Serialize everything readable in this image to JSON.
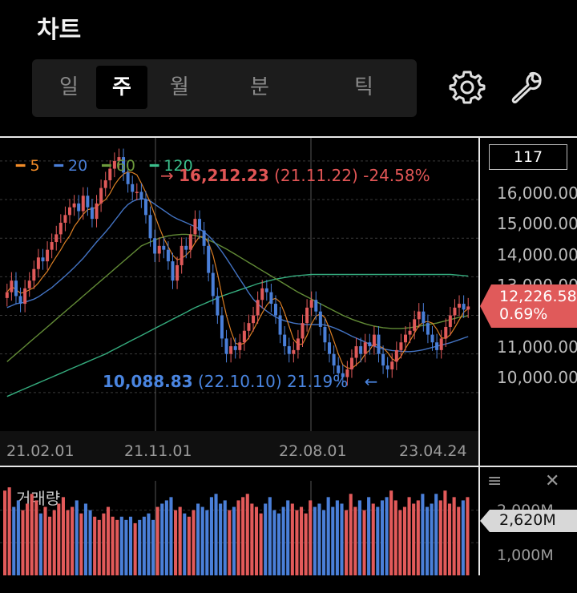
{
  "header": {
    "title": "차트"
  },
  "tabs": [
    {
      "label": "일",
      "active": false
    },
    {
      "label": "주",
      "active": true
    },
    {
      "label": "월",
      "active": false
    },
    {
      "label": "분",
      "active": false
    },
    {
      "label": "틱",
      "active": false
    }
  ],
  "toolbar": {
    "settings_icon": "gear-icon",
    "tools_icon": "wrench-icon"
  },
  "chart_data": [
    {
      "type": "candlestick",
      "interval": "weekly",
      "x_ticks": [
        "21.02.01",
        "21.11.01",
        "22.08.01",
        "23.04.24"
      ],
      "y_ticks": [
        "16,000.00",
        "15,000.00",
        "14,000.00",
        "13,000.00",
        "11,000.00",
        "10,000.00"
      ],
      "ylim": [
        9000,
        16600
      ],
      "legend": [
        {
          "label": "5",
          "color": "#f28c28"
        },
        {
          "label": "20",
          "color": "#4a7fd8"
        },
        {
          "label": "60",
          "color": "#6d9a3c"
        },
        {
          "label": "120",
          "color": "#3bbf8c"
        }
      ],
      "visible_candle_count": "117",
      "current_price": "12,226.58",
      "current_change": "0.69%",
      "high_annotation": {
        "arrow": "→",
        "value": "16,212.23",
        "date": "(21.11.22)",
        "change": "-24.58%"
      },
      "low_annotation": {
        "value": "10,088.83",
        "date": "(22.10.10)",
        "change": "21.19%",
        "arrow": "←"
      },
      "close_series": [
        12600,
        12900,
        12500,
        12300,
        12700,
        12900,
        13200,
        13500,
        13400,
        13700,
        13900,
        14100,
        14400,
        14600,
        14800,
        14900,
        14700,
        15100,
        14800,
        14500,
        14900,
        15300,
        15500,
        15800,
        16000,
        16100,
        15700,
        15400,
        15200,
        15200,
        15000,
        14600,
        14000,
        13600,
        13800,
        13700,
        13400,
        12900,
        13300,
        13800,
        13700,
        14100,
        14500,
        14200,
        13800,
        13100,
        12500,
        12000,
        11400,
        11000,
        11200,
        11100,
        11300,
        11600,
        11800,
        12000,
        12400,
        12700,
        12600,
        12300,
        12000,
        11500,
        11200,
        11000,
        11100,
        11400,
        11800,
        12200,
        12400,
        12100,
        11700,
        11300,
        11000,
        10700,
        10500,
        10400,
        10600,
        10900,
        11200,
        11000,
        11300,
        11200,
        11500,
        11000,
        10700,
        10600,
        10800,
        11100,
        11300,
        11500,
        11600,
        11900,
        12100,
        11800,
        11500,
        11300,
        11100,
        11400,
        11700,
        12000,
        12200,
        12300,
        12150,
        12230
      ],
      "ma": {
        "5": [
          12600,
          12750,
          12666,
          12575,
          12600,
          12660,
          12720,
          12840,
          13000,
          13140,
          13340,
          13520,
          13700,
          13900,
          14060,
          14300,
          14460,
          14620,
          14740,
          14760,
          14800,
          14920,
          15000,
          15160,
          15380,
          15540,
          15660,
          15720,
          15700,
          15640,
          15420,
          15180,
          14920,
          14600,
          14280,
          14000,
          13780,
          13560,
          13440,
          13480,
          13560,
          13680,
          13880,
          14040,
          14040,
          13880,
          13560,
          13080,
          12520,
          12000,
          11600,
          11280,
          11240,
          11280,
          11420,
          11620,
          11840,
          12060,
          12260,
          12400,
          12440,
          12340,
          12060,
          11720,
          11380,
          11240,
          11260,
          11480,
          11780,
          11980,
          12040,
          11940,
          11660,
          11340,
          11000,
          10720,
          10640,
          10620,
          10720,
          10820,
          11000,
          11100,
          11280,
          11200,
          11160,
          11040,
          10880,
          10800,
          10940,
          11140,
          11340,
          11540,
          11740,
          11820,
          11840,
          11800,
          11640,
          11420,
          11400,
          11500,
          11680,
          11880,
          12080,
          12176
        ],
        "20": [
          12200,
          12250,
          12300,
          12320,
          12340,
          12380,
          12420,
          12480,
          12560,
          12640,
          12720,
          12820,
          12920,
          13020,
          13130,
          13240,
          13360,
          13480,
          13620,
          13760,
          13900,
          14030,
          14160,
          14300,
          14450,
          14600,
          14750,
          14870,
          14950,
          15000,
          15020,
          15010,
          14960,
          14880,
          14800,
          14720,
          14640,
          14560,
          14500,
          14450,
          14400,
          14350,
          14300,
          14240,
          14160,
          14060,
          13940,
          13800,
          13650,
          13480,
          13300,
          13120,
          12940,
          12760,
          12580,
          12420,
          12300,
          12200,
          12110,
          12030,
          11960,
          11900,
          11860,
          11830,
          11800,
          11780,
          11770,
          11760,
          11760,
          11760,
          11760,
          11750,
          11720,
          11680,
          11630,
          11580,
          11520,
          11460,
          11410,
          11360,
          11310,
          11250,
          11200,
          11160,
          11130,
          11110,
          11090,
          11080,
          11070,
          11060,
          11060,
          11070,
          11090,
          11110,
          11140,
          11170,
          11200,
          11230,
          11260,
          11290,
          11330,
          11370,
          11410,
          11450
        ],
        "60": [
          10800,
          10900,
          11000,
          11100,
          11200,
          11300,
          11400,
          11500,
          11600,
          11700,
          11800,
          11900,
          12000,
          12100,
          12200,
          12300,
          12400,
          12500,
          12600,
          12700,
          12800,
          12900,
          13000,
          13100,
          13200,
          13300,
          13400,
          13500,
          13600,
          13700,
          13800,
          13850,
          13900,
          13950,
          14000,
          14030,
          14060,
          14080,
          14090,
          14100,
          14100,
          14090,
          14070,
          14040,
          14000,
          13950,
          13900,
          13840,
          13780,
          13720,
          13650,
          13580,
          13510,
          13440,
          13370,
          13300,
          13230,
          13160,
          13090,
          13020,
          12950,
          12880,
          12810,
          12740,
          12670,
          12600,
          12540,
          12480,
          12420,
          12360,
          12300,
          12240,
          12180,
          12120,
          12060,
          12000,
          11950,
          11900,
          11860,
          11820,
          11780,
          11750,
          11720,
          11700,
          11680,
          11670,
          11660,
          11660,
          11660,
          11670,
          11680,
          11700,
          11720,
          11740,
          11760,
          11780,
          11800,
          11830,
          11860,
          11890,
          11920,
          11950,
          11970,
          11990
        ],
        "120": [
          9900,
          9950,
          10000,
          10050,
          10100,
          10150,
          10200,
          10250,
          10300,
          10350,
          10400,
          10450,
          10500,
          10550,
          10600,
          10650,
          10700,
          10750,
          10800,
          10850,
          10900,
          10950,
          11000,
          11060,
          11120,
          11180,
          11240,
          11300,
          11360,
          11420,
          11480,
          11540,
          11600,
          11660,
          11720,
          11780,
          11840,
          11900,
          11960,
          12020,
          12080,
          12140,
          12200,
          12250,
          12300,
          12350,
          12400,
          12450,
          12500,
          12540,
          12580,
          12620,
          12660,
          12700,
          12740,
          12780,
          12820,
          12850,
          12880,
          12910,
          12940,
          12960,
          12980,
          13000,
          13020,
          13030,
          13040,
          13050,
          13060,
          13060,
          13060,
          13060,
          13060,
          13060,
          13060,
          13060,
          13060,
          13060,
          13060,
          13060,
          13060,
          13060,
          13060,
          13060,
          13060,
          13060,
          13060,
          13060,
          13060,
          13060,
          13060,
          13060,
          13060,
          13060,
          13060,
          13060,
          13060,
          13060,
          13060,
          13060,
          13050,
          13040,
          13030,
          13020
        ]
      }
    },
    {
      "type": "bar",
      "title": "거래량",
      "y_ticks": [
        "2,000M",
        "1,000M"
      ],
      "current_volume": "2,620M",
      "values": [
        2600,
        2700,
        2100,
        2300,
        2000,
        2200,
        2500,
        2300,
        1900,
        2100,
        1800,
        2000,
        2200,
        2400,
        2000,
        2100,
        2300,
        1900,
        2200,
        2000,
        1800,
        1700,
        1900,
        2100,
        1800,
        1700,
        1800,
        1700,
        1800,
        1600,
        1700,
        1800,
        1900,
        1700,
        2100,
        2200,
        2300,
        2400,
        2000,
        2100,
        1900,
        1800,
        2000,
        2200,
        2100,
        2000,
        2400,
        2500,
        2200,
        2300,
        2000,
        2100,
        2300,
        2400,
        2500,
        2200,
        2100,
        1900,
        2200,
        2400,
        2000,
        1900,
        2100,
        2300,
        2200,
        2000,
        2100,
        1900,
        2300,
        2100,
        2200,
        2000,
        2400,
        2100,
        2300,
        2200,
        2000,
        2500,
        2100,
        2300,
        2000,
        2400,
        2200,
        2100,
        2300,
        2400,
        2600,
        2300,
        2000,
        2100,
        2400,
        2200,
        2300,
        2500,
        2100,
        2200,
        2500,
        2300,
        2600,
        2200,
        2400,
        2100,
        2300,
        2400
      ],
      "up_color": "#e25a5a",
      "down_color": "#4a7fd8"
    }
  ]
}
